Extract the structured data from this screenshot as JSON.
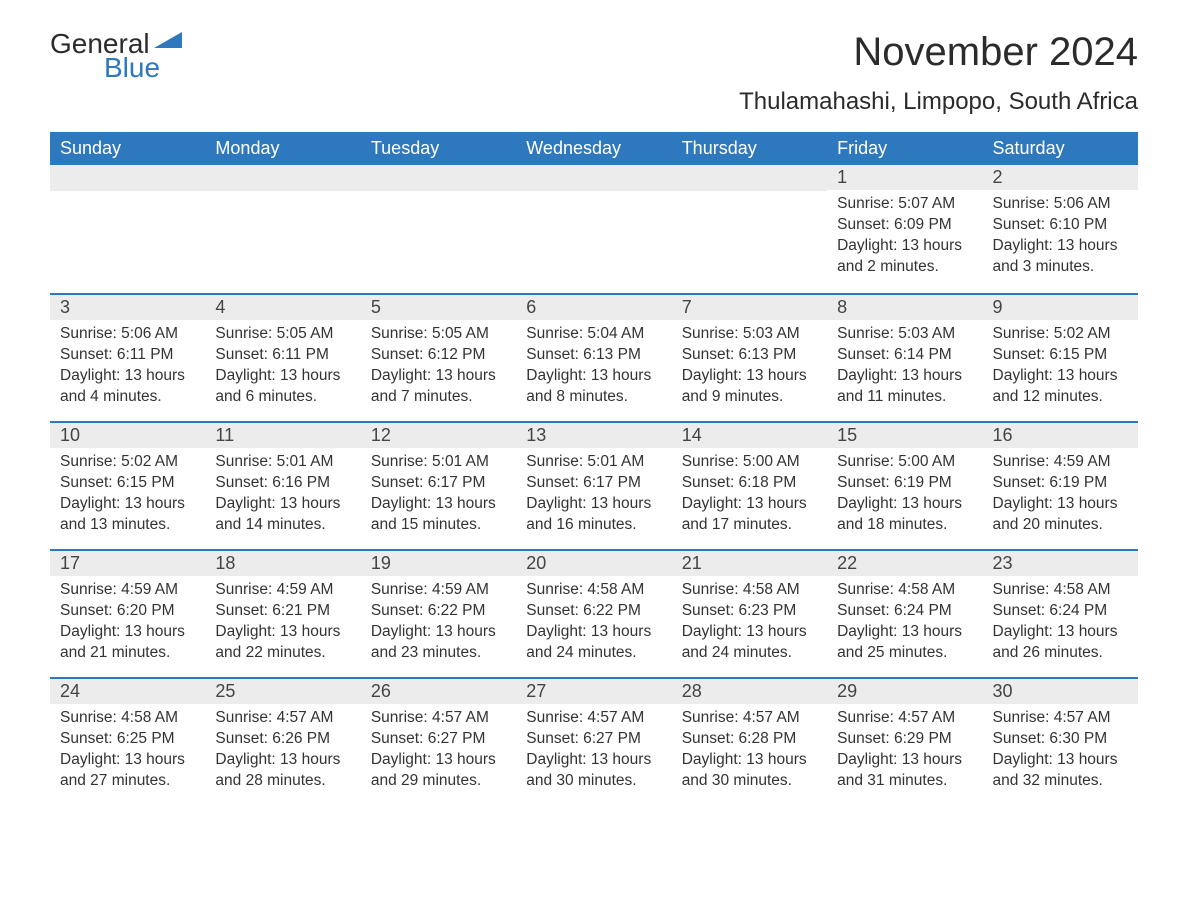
{
  "logo": {
    "text1": "General",
    "text2": "Blue"
  },
  "title": "November 2024",
  "subtitle": "Thulamahashi, Limpopo, South Africa",
  "colors": {
    "header_bg": "#2e78bd",
    "header_text": "#ffffff",
    "daynum_bg": "#ececec",
    "day_border": "#2e78bd",
    "body_text": "#333333",
    "page_bg": "#ffffff"
  },
  "layout": {
    "columns": 7,
    "weeks": 5,
    "first_day_column_index": 5
  },
  "weekdays": [
    "Sunday",
    "Monday",
    "Tuesday",
    "Wednesday",
    "Thursday",
    "Friday",
    "Saturday"
  ],
  "days": [
    {
      "n": 1,
      "sunrise": "5:07 AM",
      "sunset": "6:09 PM",
      "daylight": "13 hours and 2 minutes."
    },
    {
      "n": 2,
      "sunrise": "5:06 AM",
      "sunset": "6:10 PM",
      "daylight": "13 hours and 3 minutes."
    },
    {
      "n": 3,
      "sunrise": "5:06 AM",
      "sunset": "6:11 PM",
      "daylight": "13 hours and 4 minutes."
    },
    {
      "n": 4,
      "sunrise": "5:05 AM",
      "sunset": "6:11 PM",
      "daylight": "13 hours and 6 minutes."
    },
    {
      "n": 5,
      "sunrise": "5:05 AM",
      "sunset": "6:12 PM",
      "daylight": "13 hours and 7 minutes."
    },
    {
      "n": 6,
      "sunrise": "5:04 AM",
      "sunset": "6:13 PM",
      "daylight": "13 hours and 8 minutes."
    },
    {
      "n": 7,
      "sunrise": "5:03 AM",
      "sunset": "6:13 PM",
      "daylight": "13 hours and 9 minutes."
    },
    {
      "n": 8,
      "sunrise": "5:03 AM",
      "sunset": "6:14 PM",
      "daylight": "13 hours and 11 minutes."
    },
    {
      "n": 9,
      "sunrise": "5:02 AM",
      "sunset": "6:15 PM",
      "daylight": "13 hours and 12 minutes."
    },
    {
      "n": 10,
      "sunrise": "5:02 AM",
      "sunset": "6:15 PM",
      "daylight": "13 hours and 13 minutes."
    },
    {
      "n": 11,
      "sunrise": "5:01 AM",
      "sunset": "6:16 PM",
      "daylight": "13 hours and 14 minutes."
    },
    {
      "n": 12,
      "sunrise": "5:01 AM",
      "sunset": "6:17 PM",
      "daylight": "13 hours and 15 minutes."
    },
    {
      "n": 13,
      "sunrise": "5:01 AM",
      "sunset": "6:17 PM",
      "daylight": "13 hours and 16 minutes."
    },
    {
      "n": 14,
      "sunrise": "5:00 AM",
      "sunset": "6:18 PM",
      "daylight": "13 hours and 17 minutes."
    },
    {
      "n": 15,
      "sunrise": "5:00 AM",
      "sunset": "6:19 PM",
      "daylight": "13 hours and 18 minutes."
    },
    {
      "n": 16,
      "sunrise": "4:59 AM",
      "sunset": "6:19 PM",
      "daylight": "13 hours and 20 minutes."
    },
    {
      "n": 17,
      "sunrise": "4:59 AM",
      "sunset": "6:20 PM",
      "daylight": "13 hours and 21 minutes."
    },
    {
      "n": 18,
      "sunrise": "4:59 AM",
      "sunset": "6:21 PM",
      "daylight": "13 hours and 22 minutes."
    },
    {
      "n": 19,
      "sunrise": "4:59 AM",
      "sunset": "6:22 PM",
      "daylight": "13 hours and 23 minutes."
    },
    {
      "n": 20,
      "sunrise": "4:58 AM",
      "sunset": "6:22 PM",
      "daylight": "13 hours and 24 minutes."
    },
    {
      "n": 21,
      "sunrise": "4:58 AM",
      "sunset": "6:23 PM",
      "daylight": "13 hours and 24 minutes."
    },
    {
      "n": 22,
      "sunrise": "4:58 AM",
      "sunset": "6:24 PM",
      "daylight": "13 hours and 25 minutes."
    },
    {
      "n": 23,
      "sunrise": "4:58 AM",
      "sunset": "6:24 PM",
      "daylight": "13 hours and 26 minutes."
    },
    {
      "n": 24,
      "sunrise": "4:58 AM",
      "sunset": "6:25 PM",
      "daylight": "13 hours and 27 minutes."
    },
    {
      "n": 25,
      "sunrise": "4:57 AM",
      "sunset": "6:26 PM",
      "daylight": "13 hours and 28 minutes."
    },
    {
      "n": 26,
      "sunrise": "4:57 AM",
      "sunset": "6:27 PM",
      "daylight": "13 hours and 29 minutes."
    },
    {
      "n": 27,
      "sunrise": "4:57 AM",
      "sunset": "6:27 PM",
      "daylight": "13 hours and 30 minutes."
    },
    {
      "n": 28,
      "sunrise": "4:57 AM",
      "sunset": "6:28 PM",
      "daylight": "13 hours and 30 minutes."
    },
    {
      "n": 29,
      "sunrise": "4:57 AM",
      "sunset": "6:29 PM",
      "daylight": "13 hours and 31 minutes."
    },
    {
      "n": 30,
      "sunrise": "4:57 AM",
      "sunset": "6:30 PM",
      "daylight": "13 hours and 32 minutes."
    }
  ],
  "labels": {
    "sunrise": "Sunrise:",
    "sunset": "Sunset:",
    "daylight": "Daylight:"
  }
}
